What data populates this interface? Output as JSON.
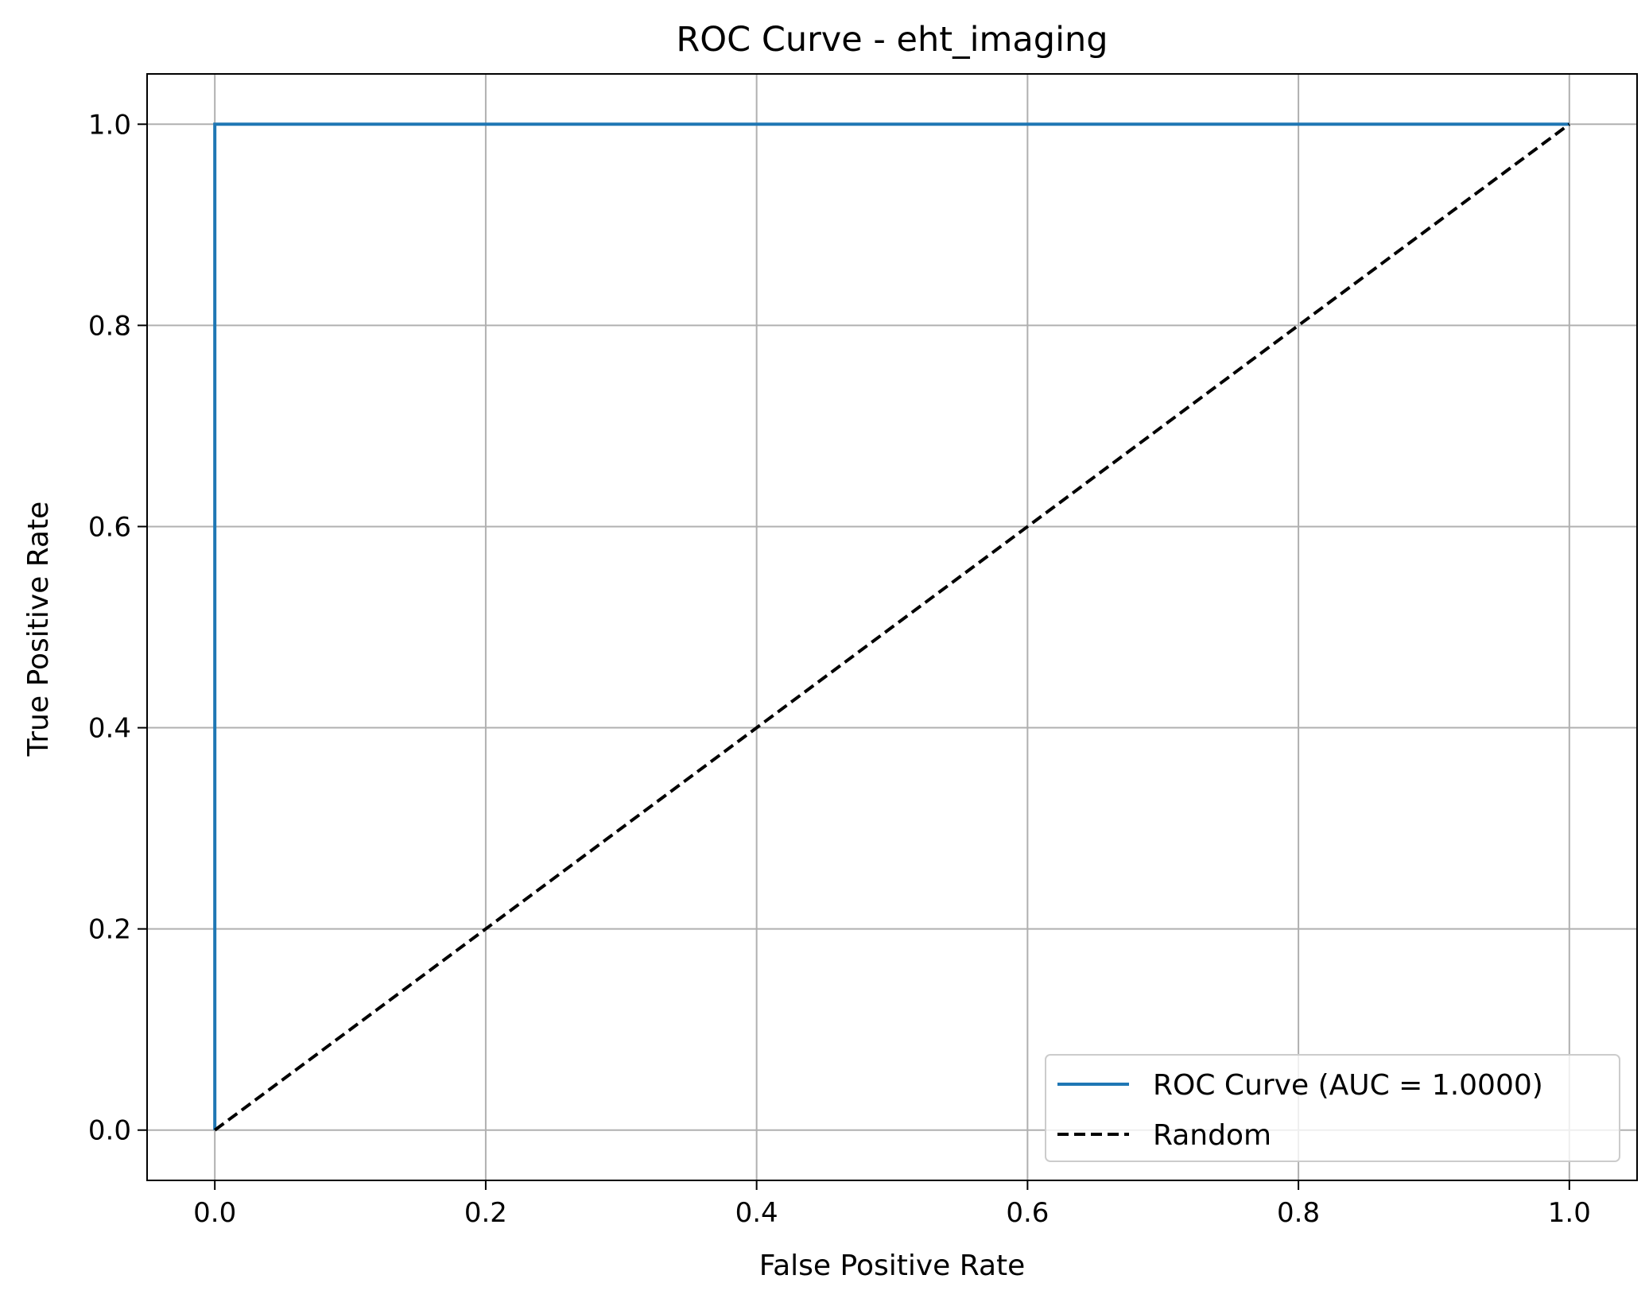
{
  "chart_data": {
    "type": "line",
    "title": "ROC Curve - eht_imaging",
    "xlabel": "False Positive Rate",
    "ylabel": "True Positive Rate",
    "xlim": [
      -0.05,
      1.05
    ],
    "ylim": [
      -0.05,
      1.05
    ],
    "xticks": [
      0.0,
      0.2,
      0.4,
      0.6,
      0.8,
      1.0
    ],
    "xtick_labels": [
      "0.0",
      "0.2",
      "0.4",
      "0.6",
      "0.8",
      "1.0"
    ],
    "yticks": [
      0.0,
      0.2,
      0.4,
      0.6,
      0.8,
      1.0
    ],
    "ytick_labels": [
      "0.0",
      "0.2",
      "0.4",
      "0.6",
      "0.8",
      "1.0"
    ],
    "grid": true,
    "legend_position": "lower-right",
    "series": [
      {
        "name": "ROC Curve (AUC = 1.0000)",
        "style": "solid",
        "color": "#1f77b4",
        "x": [
          0.0,
          0.0,
          1.0
        ],
        "y": [
          0.0,
          1.0,
          1.0
        ]
      },
      {
        "name": "Random",
        "style": "dashed",
        "color": "#000000",
        "x": [
          0.0,
          1.0
        ],
        "y": [
          0.0,
          1.0
        ]
      }
    ]
  }
}
